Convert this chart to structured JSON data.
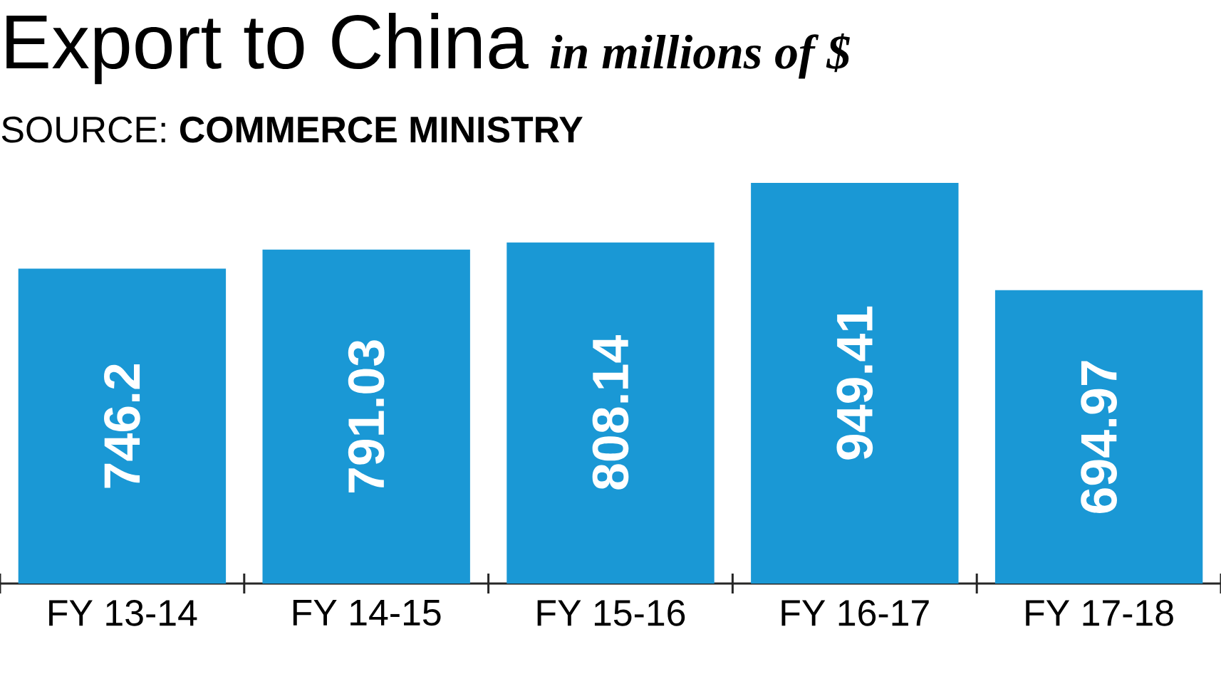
{
  "chart_data": {
    "type": "bar",
    "title": "Export to China",
    "subtitle": "in millions of $",
    "annotations": [
      "SOURCE: **COMMERCE MINISTRY**"
    ],
    "categories": [
      "FY 13-14",
      "FY 14-15",
      "FY 15-16",
      "FY 16-17",
      "FY 17-18"
    ],
    "values": [
      746.2,
      791.03,
      808.14,
      949.41,
      694.97
    ],
    "color": "#1a98d5",
    "data_labels": true
  }
}
